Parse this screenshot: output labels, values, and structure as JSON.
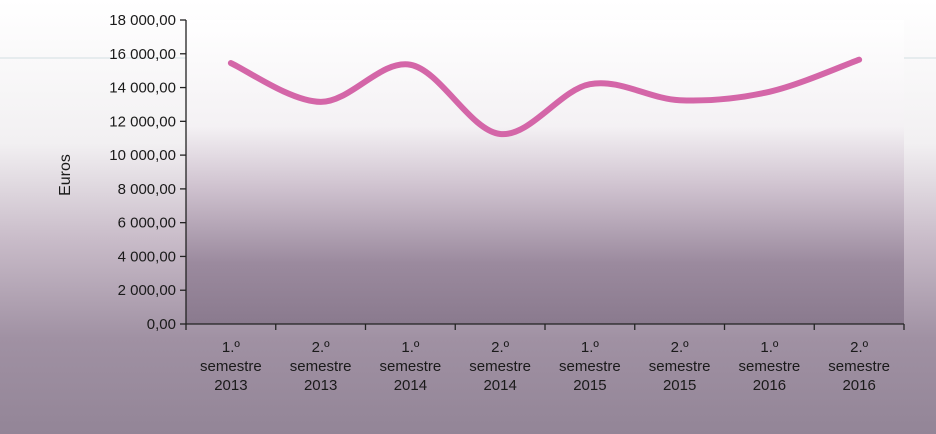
{
  "chart_data": {
    "type": "line",
    "ylabel": "Euros",
    "xlabel": "",
    "title": "",
    "ylim": [
      0,
      18000
    ],
    "y_ticks": [
      0,
      2000,
      4000,
      6000,
      8000,
      10000,
      12000,
      14000,
      16000,
      18000
    ],
    "y_tick_labels": [
      "0,00",
      "2 000,00",
      "4 000,00",
      "6 000,00",
      "8 000,00",
      "10 000,00",
      "12 000,00",
      "14 000,00",
      "16 000,00",
      "18 000,00"
    ],
    "categories": [
      [
        "1.º",
        "semestre",
        "2013"
      ],
      [
        "2.º",
        "semestre",
        "2013"
      ],
      [
        "1.º",
        "semestre",
        "2014"
      ],
      [
        "2.º",
        "semestre",
        "2014"
      ],
      [
        "1.º",
        "semestre",
        "2015"
      ],
      [
        "2.º",
        "semestre",
        "2015"
      ],
      [
        "1.º",
        "semestre",
        "2016"
      ],
      [
        "2.º",
        "semestre",
        "2016"
      ]
    ],
    "series": [
      {
        "values": [
          15450,
          13150,
          15350,
          11250,
          14200,
          13250,
          13750,
          15650
        ]
      }
    ],
    "line_color": "#d466a8",
    "grid": false,
    "legend": "none"
  }
}
